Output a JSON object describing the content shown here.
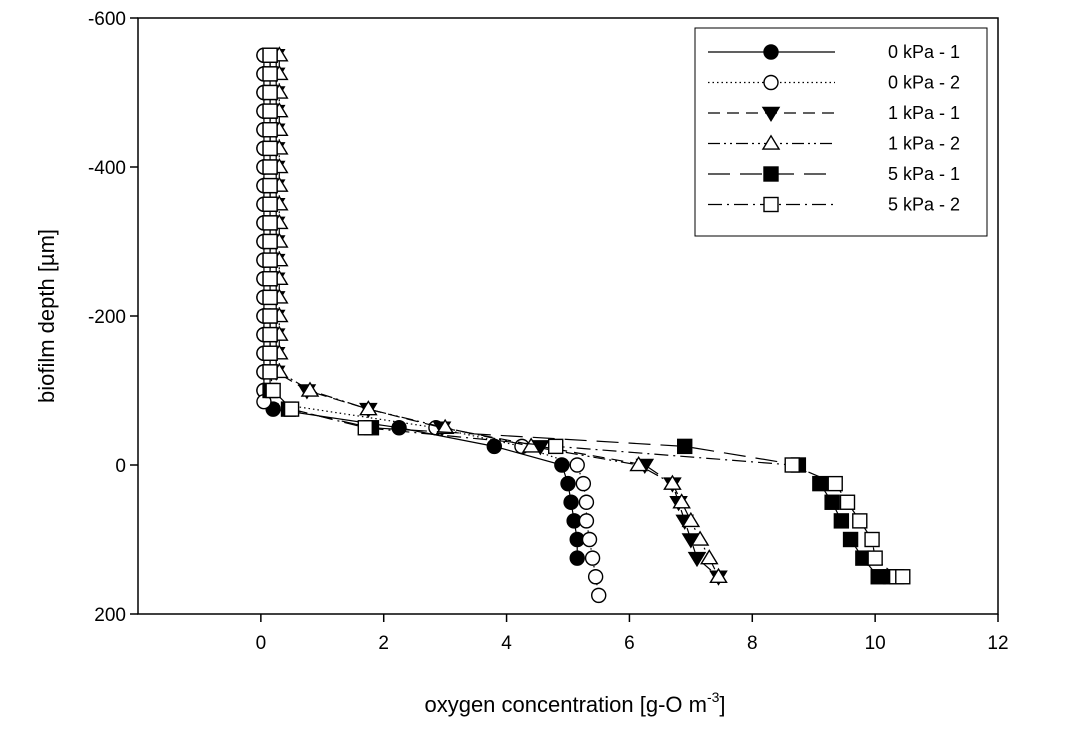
{
  "chart_data": {
    "type": "scatter",
    "xlabel": "oxygen concentration [g-O m",
    "xlabel_sup": "-3",
    "xlabel_suffix": "]",
    "ylabel": "biofilm depth [µm]",
    "xlim": [
      -2,
      12
    ],
    "ylim": [
      200,
      -600
    ],
    "y_axis_inverted": true,
    "x_ticks": [
      0,
      2,
      4,
      6,
      8,
      10,
      12
    ],
    "y_ticks": [
      -600,
      -400,
      -200,
      0,
      200
    ],
    "x_tick_labels": [
      "0",
      "2",
      "4",
      "6",
      "8",
      "10",
      "12"
    ],
    "y_tick_labels": [
      "-600",
      "-400",
      "-200",
      "0",
      "200"
    ],
    "grid": false,
    "legend_position": "top-right",
    "series": [
      {
        "name": "0 kPa - 1",
        "marker": "circle",
        "filled": true,
        "line_style": "solid",
        "color": "#000000",
        "x": [
          0.05,
          0.05,
          0.05,
          0.05,
          0.05,
          0.05,
          0.05,
          0.05,
          0.05,
          0.05,
          0.05,
          0.05,
          0.05,
          0.05,
          0.05,
          0.05,
          0.05,
          0.05,
          0.05,
          0.2,
          2.25,
          3.8,
          4.9,
          5.0,
          5.05,
          5.1,
          5.15,
          5.15
        ],
        "y": [
          -550,
          -525,
          -500,
          -475,
          -450,
          -425,
          -400,
          -375,
          -350,
          -325,
          -300,
          -275,
          -250,
          -225,
          -200,
          -175,
          -150,
          -125,
          -100,
          -75,
          -50,
          -25,
          0,
          25,
          50,
          75,
          100,
          125
        ]
      },
      {
        "name": "0 kPa - 2",
        "marker": "circle",
        "filled": false,
        "line_style": "dotted",
        "color": "#000000",
        "x": [
          0.05,
          0.05,
          0.05,
          0.05,
          0.05,
          0.05,
          0.05,
          0.05,
          0.05,
          0.05,
          0.05,
          0.05,
          0.05,
          0.05,
          0.05,
          0.05,
          0.05,
          0.05,
          0.05,
          0.05,
          2.85,
          4.25,
          5.15,
          5.25,
          5.3,
          5.3,
          5.35,
          5.4,
          5.45,
          5.5
        ],
        "y": [
          -550,
          -525,
          -500,
          -475,
          -450,
          -425,
          -400,
          -375,
          -350,
          -325,
          -300,
          -275,
          -250,
          -225,
          -200,
          -175,
          -150,
          -125,
          -100,
          -85,
          -50,
          -25,
          0,
          25,
          50,
          75,
          100,
          125,
          150,
          175
        ]
      },
      {
        "name": "1 kPa - 1",
        "marker": "triangle-down",
        "filled": true,
        "line_style": "dashed",
        "color": "#000000",
        "x": [
          0.25,
          0.25,
          0.25,
          0.25,
          0.25,
          0.25,
          0.25,
          0.25,
          0.25,
          0.25,
          0.25,
          0.25,
          0.25,
          0.25,
          0.25,
          0.25,
          0.25,
          0.25,
          0.75,
          1.75,
          2.95,
          4.55,
          6.25,
          6.7,
          6.8,
          6.9,
          7.0,
          7.1,
          7.45
        ],
        "y": [
          -550,
          -525,
          -500,
          -475,
          -450,
          -425,
          -400,
          -375,
          -350,
          -325,
          -300,
          -275,
          -250,
          -225,
          -200,
          -175,
          -150,
          -125,
          -100,
          -75,
          -50,
          -25,
          0,
          25,
          50,
          75,
          100,
          125,
          150
        ]
      },
      {
        "name": "1 kPa - 2",
        "marker": "triangle-up",
        "filled": false,
        "line_style": "dash-dot-dot",
        "color": "#000000",
        "x": [
          0.3,
          0.3,
          0.3,
          0.3,
          0.3,
          0.3,
          0.3,
          0.3,
          0.3,
          0.3,
          0.3,
          0.3,
          0.3,
          0.3,
          0.3,
          0.3,
          0.3,
          0.3,
          0.8,
          1.75,
          3.0,
          4.4,
          6.15,
          6.7,
          6.85,
          7.0,
          7.15,
          7.3,
          7.45
        ],
        "y": [
          -550,
          -525,
          -500,
          -475,
          -450,
          -425,
          -400,
          -375,
          -350,
          -325,
          -300,
          -275,
          -250,
          -225,
          -200,
          -175,
          -150,
          -125,
          -100,
          -75,
          -50,
          -25,
          0,
          25,
          50,
          75,
          100,
          125,
          150
        ]
      },
      {
        "name": "5 kPa - 1",
        "marker": "square",
        "filled": true,
        "line_style": "long-dash",
        "color": "#000000",
        "x": [
          0.15,
          0.15,
          0.15,
          0.15,
          0.15,
          0.15,
          0.15,
          0.15,
          0.15,
          0.15,
          0.15,
          0.15,
          0.15,
          0.15,
          0.15,
          0.15,
          0.15,
          0.15,
          0.15,
          0.45,
          1.8,
          6.9,
          8.75,
          9.1,
          9.3,
          9.45,
          9.6,
          9.8,
          10.05,
          10.25
        ],
        "y": [
          -550,
          -525,
          -500,
          -475,
          -450,
          -425,
          -400,
          -375,
          -350,
          -325,
          -300,
          -275,
          -250,
          -225,
          -200,
          -175,
          -150,
          -125,
          -100,
          -75,
          -50,
          -25,
          0,
          25,
          50,
          75,
          100,
          125,
          150,
          150
        ]
      },
      {
        "name": "5 kPa - 2",
        "marker": "square",
        "filled": false,
        "line_style": "dash-dot",
        "color": "#000000",
        "x": [
          0.15,
          0.15,
          0.15,
          0.15,
          0.15,
          0.15,
          0.15,
          0.15,
          0.15,
          0.15,
          0.15,
          0.15,
          0.15,
          0.15,
          0.15,
          0.15,
          0.15,
          0.15,
          0.2,
          0.5,
          1.7,
          4.8,
          8.65,
          9.35,
          9.55,
          9.75,
          9.95,
          10.0,
          10.35,
          10.45
        ],
        "y": [
          -550,
          -525,
          -500,
          -475,
          -450,
          -425,
          -400,
          -375,
          -350,
          -325,
          -300,
          -275,
          -250,
          -225,
          -200,
          -175,
          -150,
          -125,
          -100,
          -75,
          -50,
          -25,
          0,
          25,
          50,
          75,
          100,
          125,
          150,
          150
        ]
      }
    ]
  }
}
